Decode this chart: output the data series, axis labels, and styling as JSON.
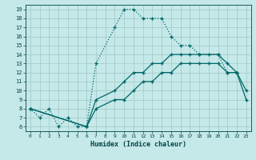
{
  "xlabel": "Humidex (Indice chaleur)",
  "bg_color": "#c5e8e8",
  "grid_color": "#a0c8c8",
  "line_color": "#006868",
  "xlim": [
    -0.5,
    23.5
  ],
  "ylim": [
    5.5,
    19.5
  ],
  "xticks": [
    0,
    1,
    2,
    3,
    4,
    5,
    6,
    7,
    8,
    9,
    10,
    11,
    12,
    13,
    14,
    15,
    16,
    17,
    18,
    19,
    20,
    21,
    22,
    23
  ],
  "yticks": [
    6,
    7,
    8,
    9,
    10,
    11,
    12,
    13,
    14,
    15,
    16,
    17,
    18,
    19
  ],
  "line1_x": [
    0,
    1,
    2,
    3,
    4,
    5,
    6,
    7,
    9,
    10,
    11,
    12,
    13,
    14,
    15,
    16,
    17,
    18,
    20,
    21,
    22
  ],
  "line1_y": [
    8,
    7,
    8,
    6,
    7,
    6,
    6,
    13,
    17,
    19,
    19,
    18,
    18,
    18,
    16,
    15,
    15,
    14,
    14,
    12,
    12
  ],
  "line2_x": [
    0,
    6,
    7,
    9,
    10,
    11,
    12,
    13,
    14,
    15,
    16,
    17,
    18,
    19,
    20,
    21,
    22,
    23
  ],
  "line2_y": [
    8,
    6,
    9,
    10,
    11,
    12,
    12,
    13,
    13,
    14,
    14,
    14,
    14,
    14,
    14,
    13,
    12,
    10
  ],
  "line3_x": [
    0,
    6,
    7,
    9,
    10,
    11,
    12,
    13,
    14,
    15,
    16,
    17,
    18,
    19,
    20,
    21,
    22,
    23
  ],
  "line3_y": [
    8,
    6,
    8,
    9,
    9,
    10,
    11,
    11,
    12,
    12,
    13,
    13,
    13,
    13,
    13,
    12,
    12,
    9
  ]
}
